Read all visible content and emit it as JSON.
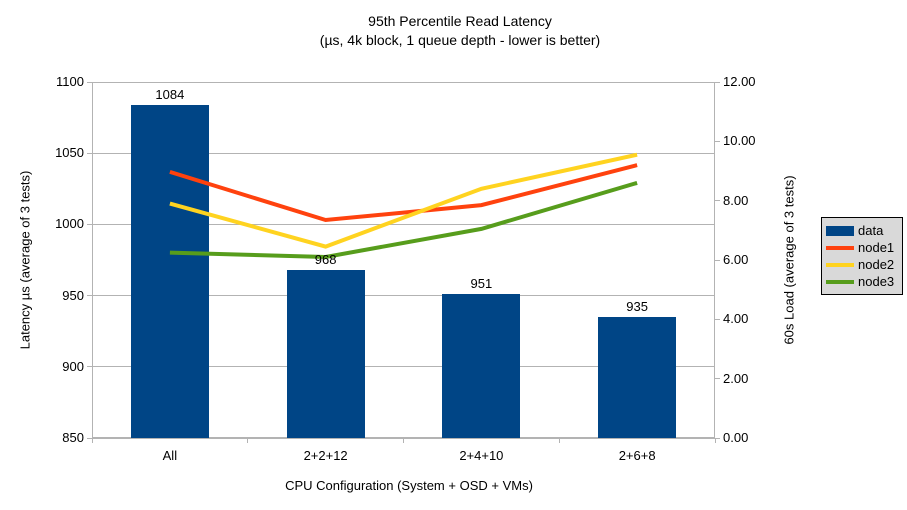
{
  "chart_data": {
    "type": "bar+line",
    "title": "95th Percentile Read Latency",
    "subtitle": "(µs, 4k block, 1 queue depth - lower is better)",
    "categories": [
      "All",
      "2+2+12",
      "2+4+10",
      "2+6+8"
    ],
    "xlabel": "CPU Configuration (System + OSD + VMs)",
    "left_axis": {
      "label": "Latency µs (average of 3 tests)",
      "min": 850,
      "max": 1100,
      "ticks": [
        850,
        900,
        950,
        1000,
        1050,
        1100
      ]
    },
    "right_axis": {
      "label": "60s Load (average of 3 tests)",
      "min": 0,
      "max": 12,
      "ticks": [
        "0.00",
        "2.00",
        "4.00",
        "6.00",
        "8.00",
        "10.00",
        "12.00"
      ]
    },
    "bars": {
      "name": "data",
      "color": "#004586",
      "axis": "left",
      "values": [
        1084,
        968,
        951,
        935
      ]
    },
    "series": [
      {
        "name": "node1",
        "color": "#ff420e",
        "axis": "right",
        "values": [
          8.97,
          7.35,
          7.85,
          9.2
        ]
      },
      {
        "name": "node2",
        "color": "#ffd320",
        "axis": "right",
        "values": [
          7.9,
          6.45,
          8.4,
          9.55
        ]
      },
      {
        "name": "node3",
        "color": "#579d1c",
        "axis": "right",
        "values": [
          6.25,
          6.1,
          7.05,
          8.6
        ]
      }
    ],
    "legend": {
      "position": "right"
    },
    "grid": "horizontal",
    "colors": {
      "gridline": "#b3b3b3",
      "plot_border": "#b3b3b3",
      "text": "#000000",
      "legend_background": "#d9d9d9",
      "legend_border": "#000000"
    }
  }
}
